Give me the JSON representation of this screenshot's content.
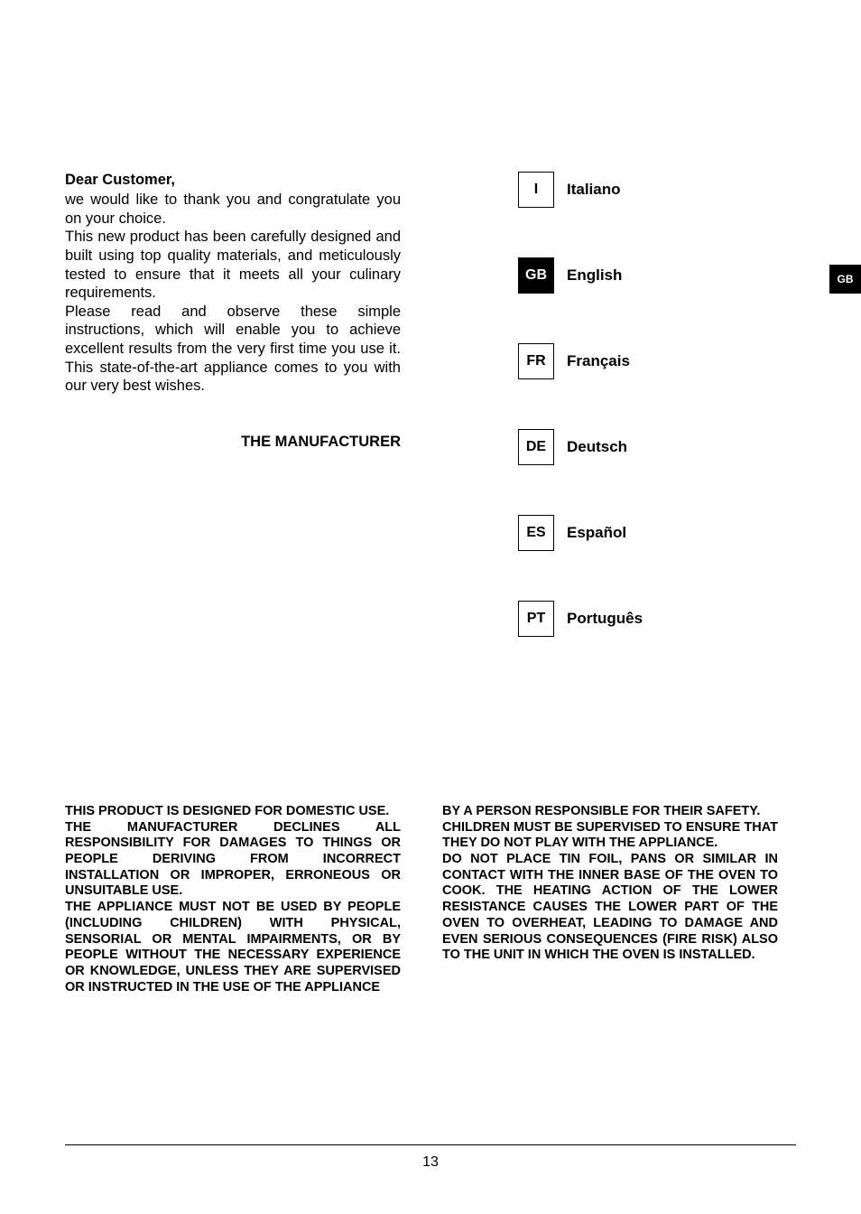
{
  "greeting": "Dear Customer,",
  "intro": {
    "p1": "we would like to thank you and congratulate you on your choice.",
    "p2": "This new product has been carefully designed and built using top quality materials, and meticulously tested to ensure that it meets all your culinary requirements.",
    "p3": "Please read and observe these simple instructions, which will enable you to achieve excellent results from the very first time you use it. This state-of-the-art appliance comes to you with our very best wishes."
  },
  "manufacturer": "THE MANUFACTURER",
  "languages": [
    {
      "code": "I",
      "name": "Italiano",
      "active": false
    },
    {
      "code": "GB",
      "name": "English",
      "active": true
    },
    {
      "code": "FR",
      "name": "Français",
      "active": false
    },
    {
      "code": "DE",
      "name": "Deutsch",
      "active": false
    },
    {
      "code": "ES",
      "name": "Español",
      "active": false
    },
    {
      "code": "PT",
      "name": "Português",
      "active": false
    }
  ],
  "side_tab": "GB",
  "disclaimer": {
    "col1": "THIS PRODUCT IS DESIGNED FOR DOMESTIC USE.\nTHE MANUFACTURER DECLINES ALL RESPONSIBILITY FOR DAMAGES TO THINGS OR PEOPLE DERIVING FROM INCORRECT INSTALLATION OR IMPROPER, ERRONEOUS OR UNSUITABLE USE.\nTHE APPLIANCE MUST NOT BE USED BY PEOPLE (INCLUDING CHILDREN) WITH PHYSICAL, SENSORIAL OR MENTAL IMPAIRMENTS, OR BY PEOPLE WITHOUT THE NECESSARY EXPERIENCE OR KNOWLEDGE, UNLESS THEY ARE SUPERVISED OR INSTRUCTED IN THE USE OF THE APPLIANCE",
    "col2": "BY A PERSON RESPONSIBLE FOR THEIR SAFETY.\nCHILDREN MUST BE SUPERVISED TO ENSURE THAT THEY DO NOT PLAY WITH THE APPLIANCE.\nDO NOT PLACE TIN FOIL, PANS OR SIMILAR IN CONTACT WITH THE INNER BASE OF THE OVEN TO COOK. THE HEATING ACTION OF THE LOWER RESISTANCE CAUSES THE LOWER PART OF THE OVEN TO OVERHEAT, LEADING TO DAMAGE AND EVEN SERIOUS CONSEQUENCES (FIRE RISK) ALSO TO THE UNIT IN WHICH THE OVEN IS INSTALLED."
  },
  "page_number": "13"
}
